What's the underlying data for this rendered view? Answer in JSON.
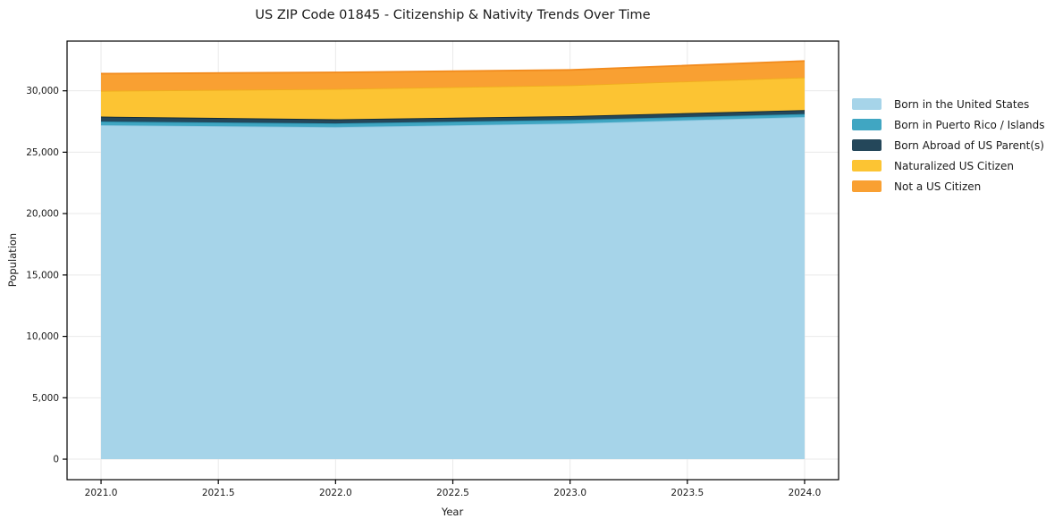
{
  "figure": {
    "title": "US ZIP Code 01845 - Citizenship & Nativity Trends Over Time"
  },
  "chart_data": {
    "type": "area",
    "stacked": true,
    "title": "US ZIP Code 01845 - Citizenship & Nativity Trends Over Time",
    "xlabel": "Year",
    "ylabel": "Population",
    "x": [
      2021,
      2022,
      2023,
      2024
    ],
    "series": [
      {
        "name": "Born in the United States",
        "color": "#A6D4E9",
        "edge_color": "#8CC6E0",
        "values": [
          27200,
          27050,
          27340,
          27870
        ]
      },
      {
        "name": "Born in Puerto Rico / Islands",
        "color": "#40A6C2",
        "edge_color": "#2A8FAD",
        "values": [
          300,
          300,
          290,
          240
        ]
      },
      {
        "name": "Born Abroad of US Parent(s)",
        "color": "#24475A",
        "edge_color": "#102A38",
        "values": [
          400,
          330,
          310,
          320
        ]
      },
      {
        "name": "Naturalized US Citizen",
        "color": "#FCC433",
        "edge_color": "#F0AD1E",
        "values": [
          2100,
          2470,
          2510,
          2660
        ]
      },
      {
        "name": "Not a US Citizen",
        "color": "#F9A032",
        "edge_color": "#F28B1D",
        "values": [
          1400,
          1350,
          1250,
          1340
        ]
      }
    ],
    "stacked_totals": [
      31400,
      31500,
      31700,
      32430
    ],
    "xlim": [
      2020.855,
      2024.145
    ],
    "ylim": [
      -1670,
      34050
    ],
    "xticks": [
      2021.0,
      2021.5,
      2022.0,
      2022.5,
      2023.0,
      2023.5,
      2024.0
    ],
    "xtick_labels": [
      "2021.0",
      "2021.5",
      "2022.0",
      "2022.5",
      "2023.0",
      "2023.5",
      "2024.0"
    ],
    "yticks": [
      0,
      5000,
      10000,
      15000,
      20000,
      25000,
      30000
    ],
    "ytick_labels": [
      "0",
      "5,000",
      "10,000",
      "15,000",
      "20,000",
      "25,000",
      "30,000"
    ],
    "grid": true,
    "grid_color": "#e9e9e9",
    "spine_color": "#000000",
    "text_color": "#1a1a1a",
    "legend_position": "outside-right",
    "legend_frame": false
  }
}
